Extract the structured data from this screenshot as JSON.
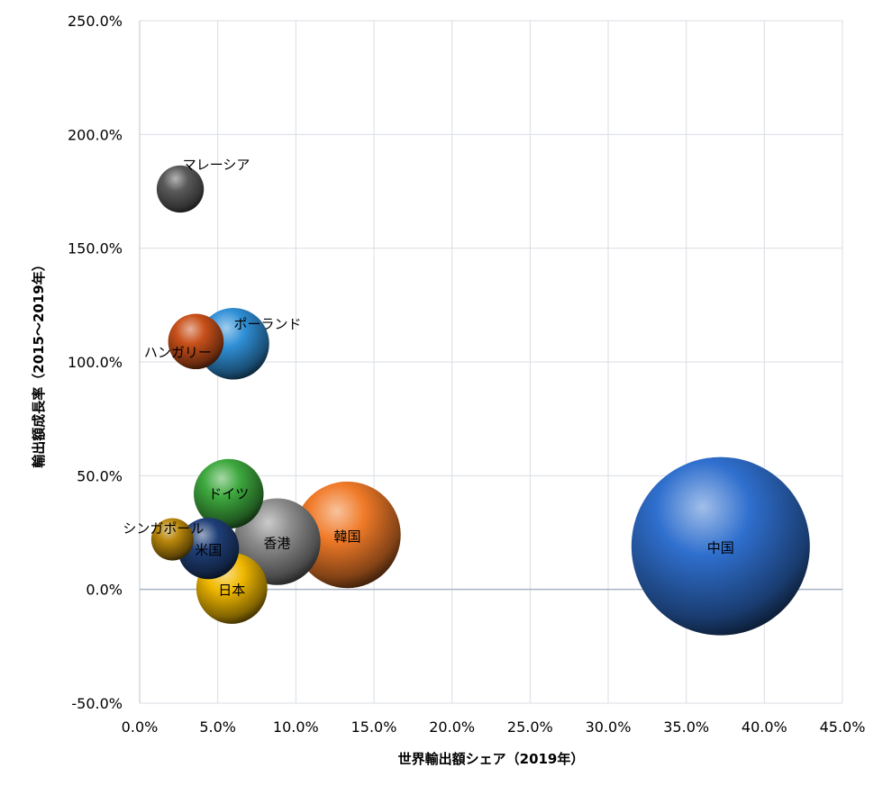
{
  "chart_data": {
    "type": "bubble",
    "xlabel": "世界輸出額シェア（2019年）",
    "ylabel": "輸出額成長率（2015～2019年）",
    "xlim": [
      0,
      45
    ],
    "ylim": [
      -50,
      250
    ],
    "xticks": [
      "0.0%",
      "5.0%",
      "10.0%",
      "15.0%",
      "20.0%",
      "25.0%",
      "30.0%",
      "35.0%",
      "40.0%",
      "45.0%"
    ],
    "yticks": [
      "-50.0%",
      "0.0%",
      "50.0%",
      "100.0%",
      "150.0%",
      "200.0%",
      "250.0%"
    ],
    "grid": true,
    "legend": "none",
    "points": [
      {
        "name": "マレーシア",
        "x": 2.6,
        "y": 176,
        "size": 2.6,
        "color": "#5a5a5a"
      },
      {
        "name": "ポーランド",
        "x": 6.0,
        "y": 108,
        "size": 6.0,
        "color": "#2f8fd6"
      },
      {
        "name": "ハンガリー",
        "x": 3.6,
        "y": 109,
        "size": 3.6,
        "color": "#c8501a"
      },
      {
        "name": "ドイツ",
        "x": 5.7,
        "y": 42,
        "size": 5.7,
        "color": "#3da83d"
      },
      {
        "name": "シンガポール",
        "x": 2.1,
        "y": 22,
        "size": 2.1,
        "color": "#b8860b"
      },
      {
        "name": "米国",
        "x": 4.4,
        "y": 18,
        "size": 4.4,
        "color": "#1f3f78"
      },
      {
        "name": "日本",
        "x": 5.9,
        "y": 0.5,
        "size": 5.9,
        "color": "#f0b800"
      },
      {
        "name": "香港",
        "x": 8.8,
        "y": 21,
        "size": 8.8,
        "color": "#8c8c8c"
      },
      {
        "name": "韓国",
        "x": 13.3,
        "y": 24,
        "size": 13.3,
        "color": "#f07a28"
      },
      {
        "name": "中国",
        "x": 37.2,
        "y": 19,
        "size": 37.2,
        "color": "#2f6fce"
      }
    ]
  }
}
